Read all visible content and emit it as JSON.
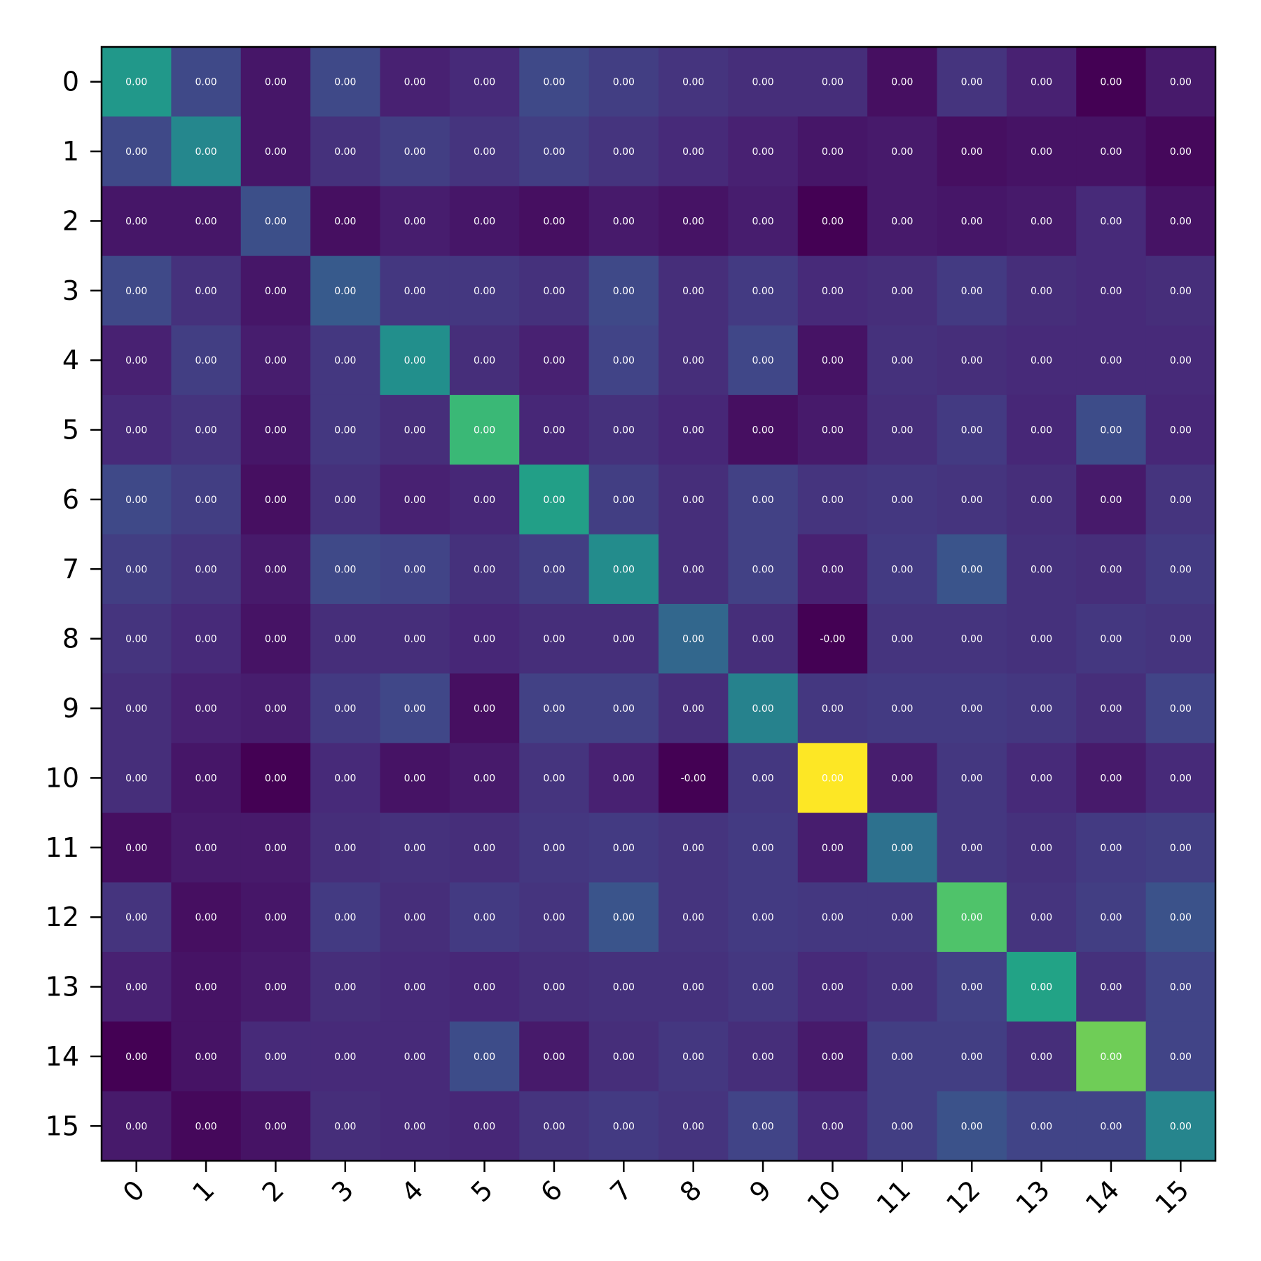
{
  "chart_data": {
    "type": "heatmap",
    "title": "",
    "xlabel": "",
    "ylabel": "",
    "x_tick_labels": [
      "0",
      "1",
      "2",
      "3",
      "4",
      "5",
      "6",
      "7",
      "8",
      "9",
      "10",
      "11",
      "12",
      "13",
      "14",
      "15"
    ],
    "y_tick_labels": [
      "0",
      "1",
      "2",
      "3",
      "4",
      "5",
      "6",
      "7",
      "8",
      "9",
      "10",
      "11",
      "12",
      "13",
      "14",
      "15"
    ],
    "colormap": "viridis",
    "color_values": [
      [
        0.53,
        0.22,
        0.06,
        0.22,
        0.09,
        0.12,
        0.22,
        0.18,
        0.15,
        0.13,
        0.13,
        0.04,
        0.15,
        0.09,
        0.0,
        0.07
      ],
      [
        0.22,
        0.46,
        0.06,
        0.14,
        0.18,
        0.15,
        0.18,
        0.15,
        0.12,
        0.09,
        0.06,
        0.07,
        0.04,
        0.05,
        0.05,
        0.02
      ],
      [
        0.06,
        0.06,
        0.24,
        0.04,
        0.08,
        0.06,
        0.04,
        0.07,
        0.05,
        0.08,
        0.0,
        0.07,
        0.06,
        0.07,
        0.12,
        0.05
      ],
      [
        0.22,
        0.14,
        0.06,
        0.28,
        0.16,
        0.16,
        0.14,
        0.22,
        0.13,
        0.17,
        0.12,
        0.13,
        0.17,
        0.13,
        0.12,
        0.13
      ],
      [
        0.09,
        0.18,
        0.08,
        0.16,
        0.49,
        0.13,
        0.09,
        0.2,
        0.13,
        0.21,
        0.05,
        0.14,
        0.13,
        0.12,
        0.12,
        0.12
      ],
      [
        0.12,
        0.15,
        0.06,
        0.16,
        0.13,
        0.67,
        0.11,
        0.14,
        0.11,
        0.04,
        0.07,
        0.13,
        0.17,
        0.11,
        0.23,
        0.11
      ],
      [
        0.22,
        0.18,
        0.04,
        0.14,
        0.09,
        0.11,
        0.56,
        0.18,
        0.13,
        0.19,
        0.15,
        0.16,
        0.15,
        0.13,
        0.07,
        0.15
      ],
      [
        0.18,
        0.15,
        0.07,
        0.22,
        0.2,
        0.14,
        0.18,
        0.48,
        0.13,
        0.19,
        0.09,
        0.17,
        0.26,
        0.14,
        0.13,
        0.17
      ],
      [
        0.15,
        0.12,
        0.05,
        0.13,
        0.13,
        0.11,
        0.13,
        0.13,
        0.33,
        0.13,
        0.0,
        0.15,
        0.15,
        0.14,
        0.16,
        0.15
      ],
      [
        0.13,
        0.09,
        0.08,
        0.17,
        0.21,
        0.04,
        0.19,
        0.19,
        0.13,
        0.44,
        0.16,
        0.17,
        0.17,
        0.16,
        0.13,
        0.2
      ],
      [
        0.13,
        0.06,
        0.0,
        0.12,
        0.05,
        0.07,
        0.15,
        0.09,
        0.0,
        0.16,
        1.0,
        0.08,
        0.16,
        0.12,
        0.07,
        0.12
      ],
      [
        0.04,
        0.07,
        0.07,
        0.13,
        0.14,
        0.13,
        0.16,
        0.17,
        0.15,
        0.17,
        0.08,
        0.37,
        0.16,
        0.14,
        0.17,
        0.18
      ],
      [
        0.15,
        0.04,
        0.06,
        0.17,
        0.13,
        0.17,
        0.15,
        0.26,
        0.15,
        0.17,
        0.16,
        0.16,
        0.72,
        0.15,
        0.18,
        0.25
      ],
      [
        0.09,
        0.05,
        0.07,
        0.13,
        0.12,
        0.11,
        0.13,
        0.14,
        0.14,
        0.16,
        0.12,
        0.14,
        0.19,
        0.58,
        0.14,
        0.2
      ],
      [
        0.0,
        0.05,
        0.12,
        0.12,
        0.12,
        0.23,
        0.07,
        0.13,
        0.16,
        0.13,
        0.07,
        0.18,
        0.18,
        0.13,
        0.78,
        0.2
      ],
      [
        0.07,
        0.02,
        0.05,
        0.13,
        0.12,
        0.11,
        0.15,
        0.17,
        0.15,
        0.2,
        0.12,
        0.18,
        0.25,
        0.2,
        0.2,
        0.45
      ]
    ],
    "cell_labels": [
      [
        "0.00",
        "0.00",
        "0.00",
        "0.00",
        "0.00",
        "0.00",
        "0.00",
        "0.00",
        "0.00",
        "0.00",
        "0.00",
        "0.00",
        "0.00",
        "0.00",
        "0.00",
        "0.00"
      ],
      [
        "0.00",
        "0.00",
        "0.00",
        "0.00",
        "0.00",
        "0.00",
        "0.00",
        "0.00",
        "0.00",
        "0.00",
        "0.00",
        "0.00",
        "0.00",
        "0.00",
        "0.00",
        "0.00"
      ],
      [
        "0.00",
        "0.00",
        "0.00",
        "0.00",
        "0.00",
        "0.00",
        "0.00",
        "0.00",
        "0.00",
        "0.00",
        "0.00",
        "0.00",
        "0.00",
        "0.00",
        "0.00",
        "0.00"
      ],
      [
        "0.00",
        "0.00",
        "0.00",
        "0.00",
        "0.00",
        "0.00",
        "0.00",
        "0.00",
        "0.00",
        "0.00",
        "0.00",
        "0.00",
        "0.00",
        "0.00",
        "0.00",
        "0.00"
      ],
      [
        "0.00",
        "0.00",
        "0.00",
        "0.00",
        "0.00",
        "0.00",
        "0.00",
        "0.00",
        "0.00",
        "0.00",
        "0.00",
        "0.00",
        "0.00",
        "0.00",
        "0.00",
        "0.00"
      ],
      [
        "0.00",
        "0.00",
        "0.00",
        "0.00",
        "0.00",
        "0.00",
        "0.00",
        "0.00",
        "0.00",
        "0.00",
        "0.00",
        "0.00",
        "0.00",
        "0.00",
        "0.00",
        "0.00"
      ],
      [
        "0.00",
        "0.00",
        "0.00",
        "0.00",
        "0.00",
        "0.00",
        "0.00",
        "0.00",
        "0.00",
        "0.00",
        "0.00",
        "0.00",
        "0.00",
        "0.00",
        "0.00",
        "0.00"
      ],
      [
        "0.00",
        "0.00",
        "0.00",
        "0.00",
        "0.00",
        "0.00",
        "0.00",
        "0.00",
        "0.00",
        "0.00",
        "0.00",
        "0.00",
        "0.00",
        "0.00",
        "0.00",
        "0.00"
      ],
      [
        "0.00",
        "0.00",
        "0.00",
        "0.00",
        "0.00",
        "0.00",
        "0.00",
        "0.00",
        "0.00",
        "0.00",
        "-0.00",
        "0.00",
        "0.00",
        "0.00",
        "0.00",
        "0.00"
      ],
      [
        "0.00",
        "0.00",
        "0.00",
        "0.00",
        "0.00",
        "0.00",
        "0.00",
        "0.00",
        "0.00",
        "0.00",
        "0.00",
        "0.00",
        "0.00",
        "0.00",
        "0.00",
        "0.00"
      ],
      [
        "0.00",
        "0.00",
        "0.00",
        "0.00",
        "0.00",
        "0.00",
        "0.00",
        "0.00",
        "-0.00",
        "0.00",
        "0.00",
        "0.00",
        "0.00",
        "0.00",
        "0.00",
        "0.00"
      ],
      [
        "0.00",
        "0.00",
        "0.00",
        "0.00",
        "0.00",
        "0.00",
        "0.00",
        "0.00",
        "0.00",
        "0.00",
        "0.00",
        "0.00",
        "0.00",
        "0.00",
        "0.00",
        "0.00"
      ],
      [
        "0.00",
        "0.00",
        "0.00",
        "0.00",
        "0.00",
        "0.00",
        "0.00",
        "0.00",
        "0.00",
        "0.00",
        "0.00",
        "0.00",
        "0.00",
        "0.00",
        "0.00",
        "0.00"
      ],
      [
        "0.00",
        "0.00",
        "0.00",
        "0.00",
        "0.00",
        "0.00",
        "0.00",
        "0.00",
        "0.00",
        "0.00",
        "0.00",
        "0.00",
        "0.00",
        "0.00",
        "0.00",
        "0.00"
      ],
      [
        "0.00",
        "0.00",
        "0.00",
        "0.00",
        "0.00",
        "0.00",
        "0.00",
        "0.00",
        "0.00",
        "0.00",
        "0.00",
        "0.00",
        "0.00",
        "0.00",
        "0.00",
        "0.00"
      ],
      [
        "0.00",
        "0.00",
        "0.00",
        "0.00",
        "0.00",
        "0.00",
        "0.00",
        "0.00",
        "0.00",
        "0.00",
        "0.00",
        "0.00",
        "0.00",
        "0.00",
        "0.00",
        "0.00"
      ]
    ],
    "x_tick_rotation_deg": 45,
    "grid": false,
    "legend": "none",
    "colorbar": false
  }
}
